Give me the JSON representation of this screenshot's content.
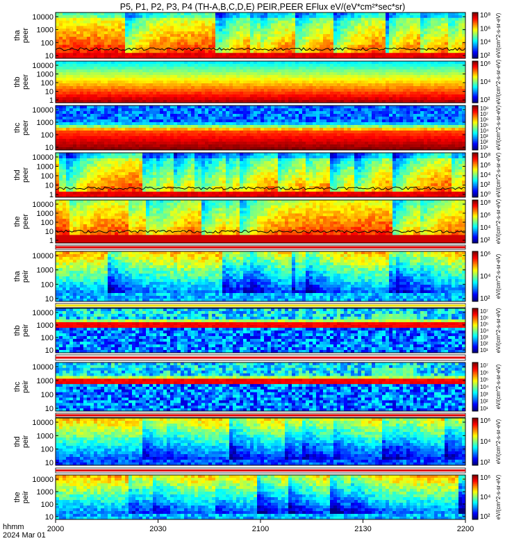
{
  "chart_data": {
    "type": "heatmap",
    "title": "P5, P1, P2, P3, P4 (TH-A,B,C,D,E) PEIR,PEER EFlux eV/(eV*cm²*sec*sr)",
    "x_ticks": [
      "2000",
      "2030",
      "2100",
      "2130",
      "2200"
    ],
    "x_label_lines": [
      "hhmm",
      "2024 Mar 01"
    ],
    "panels": [
      {
        "label": [
          "tha",
          "peer"
        ],
        "y_ticks": [
          "10000",
          "1000",
          "100",
          "10"
        ],
        "cb_ticks": [
          "10⁸",
          "10⁶",
          "10⁴",
          "10²"
        ],
        "pattern": "peer-spec",
        "has_line": true
      },
      {
        "label": [
          "thb",
          "peer"
        ],
        "y_ticks": [
          "10000",
          "1000",
          "100",
          "10",
          "1"
        ],
        "cb_ticks": [
          "10⁶",
          "10⁴",
          "10²"
        ],
        "pattern": "peer-smooth",
        "has_line": false
      },
      {
        "label": [
          "thc",
          "peer"
        ],
        "y_ticks": [
          "10000",
          "1000",
          "100",
          "10"
        ],
        "cb_ticks": [
          "10⁸",
          "10⁷",
          "10⁶",
          "10⁵",
          "10⁴",
          "10³",
          "10²",
          "10¹"
        ],
        "pattern": "peer-noisy",
        "has_line": false
      },
      {
        "label": [
          "thd",
          "peer"
        ],
        "y_ticks": [
          "10000",
          "1000",
          "100",
          "10",
          "1"
        ],
        "cb_ticks": [
          "10⁸",
          "10⁶",
          "10⁴",
          "10²",
          "10⁰"
        ],
        "pattern": "peer-spec",
        "has_line": true
      },
      {
        "label": [
          "the",
          "peer"
        ],
        "y_ticks": [
          "10000",
          "1000",
          "100",
          "10",
          "1"
        ],
        "cb_ticks": [
          "10⁸",
          "10⁶",
          "10⁴",
          "10²"
        ],
        "pattern": "peer-spec2",
        "has_line": true
      },
      {
        "label": [
          "tha",
          "peir"
        ],
        "y_ticks": [
          "10000",
          "1000",
          "100",
          "10"
        ],
        "cb_ticks": [
          "10⁶",
          "10⁴",
          "10²"
        ],
        "pattern": "peir-a",
        "has_line": false
      },
      {
        "label": [
          "thb",
          "peir"
        ],
        "y_ticks": [
          "10000",
          "1000",
          "100",
          "10"
        ],
        "cb_ticks": [
          "10⁷",
          "10⁶",
          "10⁵",
          "10⁴",
          "10³",
          "10²",
          "10¹"
        ],
        "pattern": "peir-band",
        "has_line": false
      },
      {
        "label": [
          "thc",
          "peir"
        ],
        "y_ticks": [
          "10000",
          "1000",
          "100",
          "10"
        ],
        "cb_ticks": [
          "10⁷",
          "10⁶",
          "10⁵",
          "10⁴",
          "10³",
          "10²",
          "10¹"
        ],
        "pattern": "peir-band",
        "has_line": false
      },
      {
        "label": [
          "thd",
          "peir"
        ],
        "y_ticks": [
          "10000",
          "1000",
          "100",
          "10"
        ],
        "cb_ticks": [
          "10⁶",
          "10⁴",
          "10²"
        ],
        "pattern": "peir-d",
        "has_line": false
      },
      {
        "label": [
          "the",
          "peir"
        ],
        "y_ticks": [
          "10000",
          "1000",
          "100",
          "10"
        ],
        "cb_ticks": [
          "10⁶",
          "10⁴",
          "10²"
        ],
        "pattern": "peir-a",
        "has_line": false
      }
    ],
    "colorbar_units": "eV/(cm^2-s-sr-eV)"
  }
}
